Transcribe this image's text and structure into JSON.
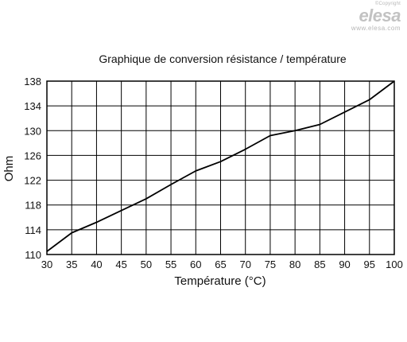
{
  "brand": {
    "copyright": "©Copyright",
    "logo_text": "elesa",
    "url": "www.elesa.com"
  },
  "chart_data": {
    "type": "line",
    "title": "Graphique de conversion résistance / température",
    "xlabel": "Température (°C)",
    "ylabel": "Ohm",
    "xlim": [
      30,
      100
    ],
    "ylim": [
      110,
      138
    ],
    "x_ticks": [
      30,
      35,
      40,
      45,
      50,
      55,
      60,
      65,
      70,
      75,
      80,
      85,
      90,
      95,
      100
    ],
    "y_ticks": [
      110,
      114,
      118,
      122,
      126,
      130,
      134,
      138
    ],
    "grid": true,
    "line_color": "#000000",
    "series": [
      {
        "x": [
          30,
          35,
          40,
          45,
          50,
          55,
          60,
          65,
          70,
          75,
          80,
          85,
          90,
          95,
          100
        ],
        "values": [
          110.5,
          113.5,
          115.2,
          117.1,
          119.0,
          121.3,
          123.5,
          125.0,
          127.0,
          129.2,
          130.0,
          131.0,
          133.0,
          135.0,
          138.0
        ]
      }
    ]
  }
}
